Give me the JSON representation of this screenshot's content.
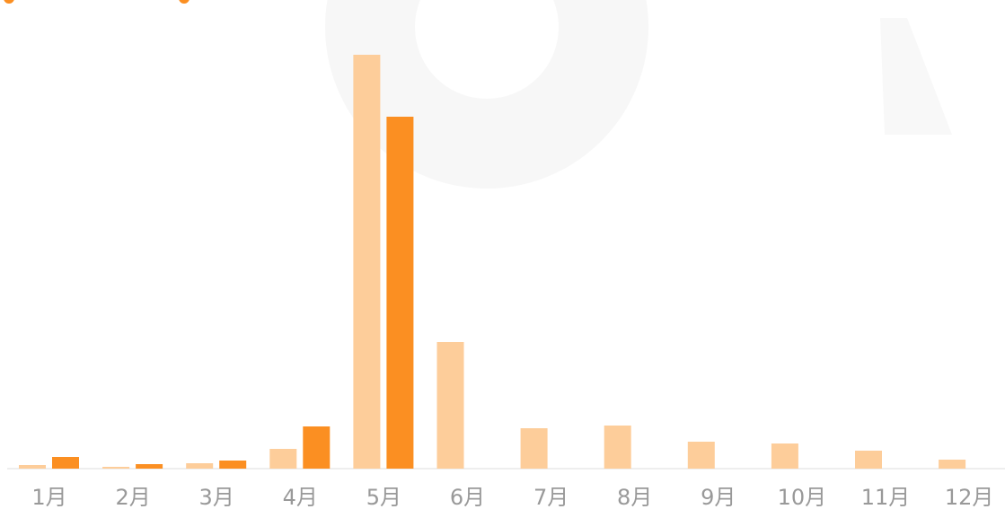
{
  "chart_data": {
    "type": "bar",
    "categories": [
      "1月",
      "2月",
      "3月",
      "4月",
      "5月",
      "6月",
      "7月",
      "8月",
      "9月",
      "10月",
      "11月",
      "12月"
    ],
    "series": [
      {
        "color": "#fdcd9a",
        "values": [
          4,
          2,
          6,
          22,
          461,
          141,
          45,
          48,
          30,
          28,
          20,
          10
        ]
      },
      {
        "color": "#fb8f22",
        "values": [
          13,
          5,
          9,
          47,
          392,
          null,
          null,
          null,
          null,
          null,
          null,
          null
        ]
      }
    ]
  }
}
